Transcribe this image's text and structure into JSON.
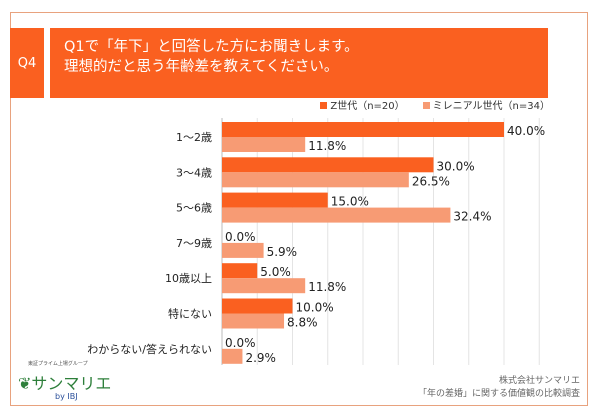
{
  "question_no": "Q4",
  "title_line1": "Q1で「年下」と回答した方にお聞きします。",
  "title_line2": "理想的だと思う年齢差を教えてください。",
  "colors": {
    "accent": "#fa6020",
    "z": "#fa6020",
    "millennial": "#f79b74"
  },
  "chart_data": {
    "type": "bar",
    "orientation": "horizontal",
    "xlim": [
      0,
      45
    ],
    "grid": true,
    "legend": "top-right",
    "categories": [
      "1〜2歳",
      "3〜4歳",
      "5〜6歳",
      "7〜9歳",
      "10歳以上",
      "特にない",
      "わからない/答えられない"
    ],
    "series": [
      {
        "name": "Z世代（n=20）",
        "values": [
          40.0,
          30.0,
          15.0,
          0.0,
          5.0,
          10.0,
          0.0
        ],
        "labels": [
          "40.0%",
          "30.0%",
          "15.0%",
          "0.0%",
          "5.0%",
          "10.0%",
          "0.0%"
        ]
      },
      {
        "name": "ミレニアル世代（n=34）",
        "values": [
          11.8,
          26.5,
          32.4,
          5.9,
          11.8,
          8.8,
          2.9
        ],
        "labels": [
          "11.8%",
          "26.5%",
          "32.4%",
          "5.9%",
          "11.8%",
          "8.8%",
          "2.9%"
        ]
      }
    ]
  },
  "logo": {
    "text": "サンマリエ",
    "tagline": "東証プライム上場グループ",
    "by": "by IBJ"
  },
  "footer": {
    "company": "株式会社サンマリエ",
    "survey": "「年の差婚」に関する価値観の比較調査"
  }
}
